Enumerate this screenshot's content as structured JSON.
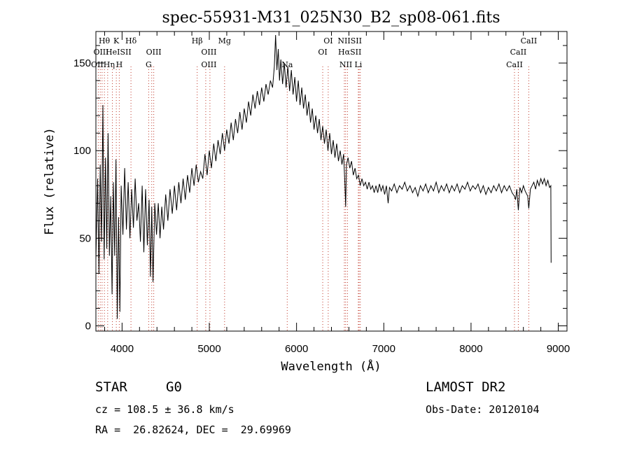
{
  "chart_data": {
    "type": "line",
    "title": "spec-55931-M31_025N30_B2_sp08-061.fits",
    "xlabel": "Wavelength (Å)",
    "ylabel": "Flux (relative)",
    "xlim": [
      3700,
      9100
    ],
    "ylim": [
      -3,
      168
    ],
    "x_ticks": [
      4000,
      5000,
      6000,
      7000,
      8000,
      9000
    ],
    "y_ticks": [
      0,
      50,
      100,
      150
    ],
    "grid": false,
    "legend": "none",
    "series": [
      {
        "color": "#000000",
        "points": [
          [
            3700,
            38
          ],
          [
            3720,
            84
          ],
          [
            3735,
            30
          ],
          [
            3750,
            92
          ],
          [
            3765,
            48
          ],
          [
            3780,
            126
          ],
          [
            3795,
            38
          ],
          [
            3810,
            96
          ],
          [
            3825,
            44
          ],
          [
            3840,
            110
          ],
          [
            3855,
            40
          ],
          [
            3870,
            74
          ],
          [
            3885,
            18
          ],
          [
            3900,
            82
          ],
          [
            3915,
            40
          ],
          [
            3930,
            95
          ],
          [
            3945,
            4
          ],
          [
            3960,
            62
          ],
          [
            3975,
            8
          ],
          [
            3990,
            80
          ],
          [
            4010,
            52
          ],
          [
            4030,
            90
          ],
          [
            4050,
            55
          ],
          [
            4070,
            82
          ],
          [
            4090,
            50
          ],
          [
            4110,
            78
          ],
          [
            4130,
            56
          ],
          [
            4150,
            84
          ],
          [
            4170,
            60
          ],
          [
            4190,
            70
          ],
          [
            4210,
            48
          ],
          [
            4230,
            80
          ],
          [
            4250,
            42
          ],
          [
            4270,
            78
          ],
          [
            4290,
            46
          ],
          [
            4310,
            72
          ],
          [
            4325,
            28
          ],
          [
            4340,
            68
          ],
          [
            4355,
            25
          ],
          [
            4375,
            70
          ],
          [
            4395,
            52
          ],
          [
            4415,
            70
          ],
          [
            4435,
            50
          ],
          [
            4455,
            68
          ],
          [
            4475,
            55
          ],
          [
            4500,
            75
          ],
          [
            4525,
            60
          ],
          [
            4550,
            78
          ],
          [
            4575,
            64
          ],
          [
            4600,
            80
          ],
          [
            4625,
            66
          ],
          [
            4650,
            82
          ],
          [
            4675,
            70
          ],
          [
            4700,
            84
          ],
          [
            4725,
            72
          ],
          [
            4750,
            86
          ],
          [
            4775,
            76
          ],
          [
            4800,
            90
          ],
          [
            4825,
            80
          ],
          [
            4850,
            92
          ],
          [
            4875,
            82
          ],
          [
            4900,
            88
          ],
          [
            4925,
            84
          ],
          [
            4950,
            98
          ],
          [
            4975,
            86
          ],
          [
            5000,
            100
          ],
          [
            5025,
            90
          ],
          [
            5050,
            104
          ],
          [
            5075,
            94
          ],
          [
            5100,
            106
          ],
          [
            5125,
            98
          ],
          [
            5150,
            110
          ],
          [
            5175,
            100
          ],
          [
            5200,
            112
          ],
          [
            5225,
            104
          ],
          [
            5250,
            116
          ],
          [
            5275,
            106
          ],
          [
            5300,
            118
          ],
          [
            5325,
            110
          ],
          [
            5350,
            122
          ],
          [
            5375,
            112
          ],
          [
            5400,
            124
          ],
          [
            5425,
            116
          ],
          [
            5450,
            128
          ],
          [
            5475,
            120
          ],
          [
            5500,
            132
          ],
          [
            5525,
            124
          ],
          [
            5550,
            134
          ],
          [
            5575,
            126
          ],
          [
            5600,
            136
          ],
          [
            5625,
            128
          ],
          [
            5650,
            138
          ],
          [
            5675,
            132
          ],
          [
            5700,
            140
          ],
          [
            5725,
            136
          ],
          [
            5745,
            148
          ],
          [
            5760,
            166
          ],
          [
            5775,
            146
          ],
          [
            5790,
            158
          ],
          [
            5805,
            140
          ],
          [
            5820,
            152
          ],
          [
            5840,
            138
          ],
          [
            5860,
            150
          ],
          [
            5880,
            136
          ],
          [
            5900,
            148
          ],
          [
            5920,
            134
          ],
          [
            5940,
            146
          ],
          [
            5960,
            132
          ],
          [
            5980,
            142
          ],
          [
            6000,
            128
          ],
          [
            6020,
            140
          ],
          [
            6040,
            126
          ],
          [
            6060,
            136
          ],
          [
            6080,
            124
          ],
          [
            6100,
            132
          ],
          [
            6120,
            120
          ],
          [
            6140,
            128
          ],
          [
            6160,
            116
          ],
          [
            6180,
            124
          ],
          [
            6200,
            112
          ],
          [
            6220,
            120
          ],
          [
            6240,
            110
          ],
          [
            6260,
            118
          ],
          [
            6280,
            106
          ],
          [
            6300,
            114
          ],
          [
            6320,
            104
          ],
          [
            6340,
            112
          ],
          [
            6360,
            100
          ],
          [
            6380,
            110
          ],
          [
            6400,
            98
          ],
          [
            6420,
            106
          ],
          [
            6440,
            96
          ],
          [
            6460,
            104
          ],
          [
            6480,
            94
          ],
          [
            6500,
            100
          ],
          [
            6520,
            92
          ],
          [
            6540,
            98
          ],
          [
            6555,
            80
          ],
          [
            6563,
            68
          ],
          [
            6572,
            92
          ],
          [
            6590,
            96
          ],
          [
            6610,
            90
          ],
          [
            6630,
            94
          ],
          [
            6650,
            86
          ],
          [
            6670,
            90
          ],
          [
            6690,
            84
          ],
          [
            6710,
            86
          ],
          [
            6730,
            80
          ],
          [
            6750,
            84
          ],
          [
            6770,
            80
          ],
          [
            6790,
            82
          ],
          [
            6810,
            78
          ],
          [
            6830,
            82
          ],
          [
            6850,
            78
          ],
          [
            6870,
            80
          ],
          [
            6890,
            76
          ],
          [
            6910,
            80
          ],
          [
            6930,
            76
          ],
          [
            6950,
            81
          ],
          [
            6970,
            77
          ],
          [
            6990,
            80
          ],
          [
            7010,
            75
          ],
          [
            7030,
            80
          ],
          [
            7050,
            70
          ],
          [
            7065,
            79
          ],
          [
            7090,
            77
          ],
          [
            7120,
            81
          ],
          [
            7150,
            76
          ],
          [
            7180,
            80
          ],
          [
            7210,
            78
          ],
          [
            7240,
            82
          ],
          [
            7270,
            77
          ],
          [
            7300,
            80
          ],
          [
            7330,
            76
          ],
          [
            7360,
            79
          ],
          [
            7390,
            74
          ],
          [
            7420,
            80
          ],
          [
            7450,
            77
          ],
          [
            7480,
            81
          ],
          [
            7510,
            76
          ],
          [
            7540,
            80
          ],
          [
            7570,
            77
          ],
          [
            7600,
            82
          ],
          [
            7630,
            76
          ],
          [
            7660,
            80
          ],
          [
            7690,
            77
          ],
          [
            7720,
            81
          ],
          [
            7750,
            76
          ],
          [
            7780,
            80
          ],
          [
            7810,
            77
          ],
          [
            7840,
            81
          ],
          [
            7870,
            76
          ],
          [
            7900,
            80
          ],
          [
            7930,
            78
          ],
          [
            7960,
            82
          ],
          [
            7990,
            77
          ],
          [
            8020,
            80
          ],
          [
            8050,
            78
          ],
          [
            8080,
            81
          ],
          [
            8110,
            76
          ],
          [
            8140,
            80
          ],
          [
            8170,
            75
          ],
          [
            8200,
            79
          ],
          [
            8230,
            76
          ],
          [
            8260,
            80
          ],
          [
            8290,
            77
          ],
          [
            8320,
            81
          ],
          [
            8350,
            76
          ],
          [
            8380,
            80
          ],
          [
            8410,
            77
          ],
          [
            8440,
            80
          ],
          [
            8470,
            76
          ],
          [
            8498,
            74
          ],
          [
            8510,
            72
          ],
          [
            8525,
            78
          ],
          [
            8542,
            66
          ],
          [
            8560,
            79
          ],
          [
            8580,
            76
          ],
          [
            8600,
            80
          ],
          [
            8620,
            77
          ],
          [
            8650,
            74
          ],
          [
            8662,
            67
          ],
          [
            8680,
            78
          ],
          [
            8700,
            80
          ],
          [
            8720,
            82
          ],
          [
            8740,
            78
          ],
          [
            8760,
            83
          ],
          [
            8780,
            80
          ],
          [
            8800,
            84
          ],
          [
            8820,
            81
          ],
          [
            8840,
            84
          ],
          [
            8860,
            80
          ],
          [
            8880,
            83
          ],
          [
            8900,
            79
          ],
          [
            8915,
            80
          ],
          [
            8918,
            36
          ]
        ]
      }
    ],
    "line_labels": [
      {
        "text": "Hθ",
        "x": 3797,
        "row": 1
      },
      {
        "text": "K",
        "x": 3934,
        "row": 1
      },
      {
        "text": "Hδ",
        "x": 4102,
        "row": 1
      },
      {
        "text": "Hβ",
        "x": 4861,
        "row": 1
      },
      {
        "text": "Mg",
        "x": 5175,
        "row": 1
      },
      {
        "text": "OI",
        "x": 6363,
        "row": 1
      },
      {
        "text": "NIISII",
        "x": 6610,
        "row": 1
      },
      {
        "text": "CaII",
        "x": 8662,
        "row": 1
      },
      {
        "text": "OIII",
        "x": 3760,
        "row": 2
      },
      {
        "text": "HeISII",
        "x": 3960,
        "row": 2
      },
      {
        "text": "OIII",
        "x": 4363,
        "row": 2
      },
      {
        "text": "OIII",
        "x": 4995,
        "row": 2
      },
      {
        "text": "OI",
        "x": 6300,
        "row": 2
      },
      {
        "text": "HαSII",
        "x": 6610,
        "row": 2
      },
      {
        "text": "CaII",
        "x": 8542,
        "row": 2
      },
      {
        "text": "OIIHη",
        "x": 3780,
        "row": 3
      },
      {
        "text": "H",
        "x": 3968,
        "row": 3
      },
      {
        "text": "G",
        "x": 4305,
        "row": 3
      },
      {
        "text": "OIII",
        "x": 4995,
        "row": 3
      },
      {
        "text": "Na",
        "x": 5893,
        "row": 3
      },
      {
        "text": "NII",
        "x": 6565,
        "row": 3
      },
      {
        "text": "Li",
        "x": 6708,
        "row": 3
      },
      {
        "text": "CaII",
        "x": 8498,
        "row": 3
      }
    ],
    "line_markers": [
      3727,
      3750,
      3771,
      3798,
      3835,
      3889,
      3934,
      3968,
      4102,
      4305,
      4340,
      4363,
      4861,
      4959,
      5007,
      5175,
      5893,
      6300,
      6363,
      6548,
      6563,
      6584,
      6708,
      6717,
      6731,
      8498,
      8542,
      8662
    ]
  },
  "info": {
    "object_class": "STAR",
    "subclass": "G0",
    "survey": "LAMOST DR2",
    "cz": "cz = 108.5 ± 36.8 km/s",
    "obs_date": "Obs-Date: 20120104",
    "coords": "RA =  26.82624, DEC =  29.69969"
  }
}
